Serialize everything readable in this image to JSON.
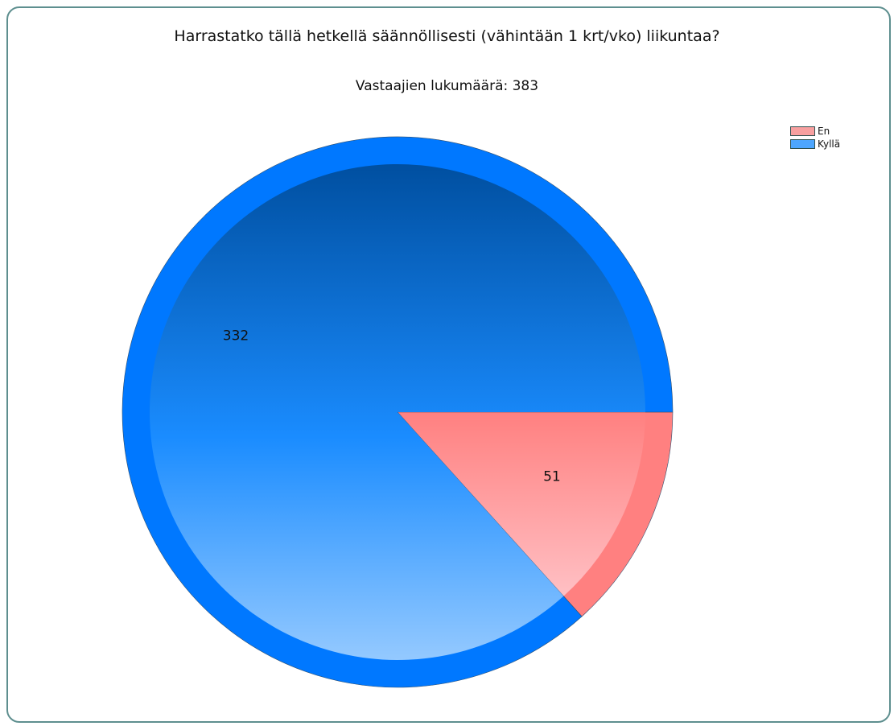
{
  "chart_data": {
    "type": "pie",
    "title": "Harrastatko tällä hetkellä säännöllisesti (vähintään 1 krt/vko) liikuntaa?",
    "subtitle": "Vastaajien lukumäärä: 383",
    "slices": [
      {
        "label": "En",
        "value": 51
      },
      {
        "label": "Kyllä",
        "value": 332
      }
    ],
    "legend": [
      {
        "label": "En",
        "color": "#f8a0a0"
      },
      {
        "label": "Kyllä",
        "color": "#4da6ff"
      }
    ],
    "legend_position": "top-right",
    "colors": {
      "En": {
        "rim": "#ff8080",
        "light": "#ffc0c4",
        "dark": "#ff8080"
      },
      "Kyllä": {
        "rim": "#0078ff",
        "light": "#94c9ff",
        "dark": "#004fa0"
      }
    }
  }
}
